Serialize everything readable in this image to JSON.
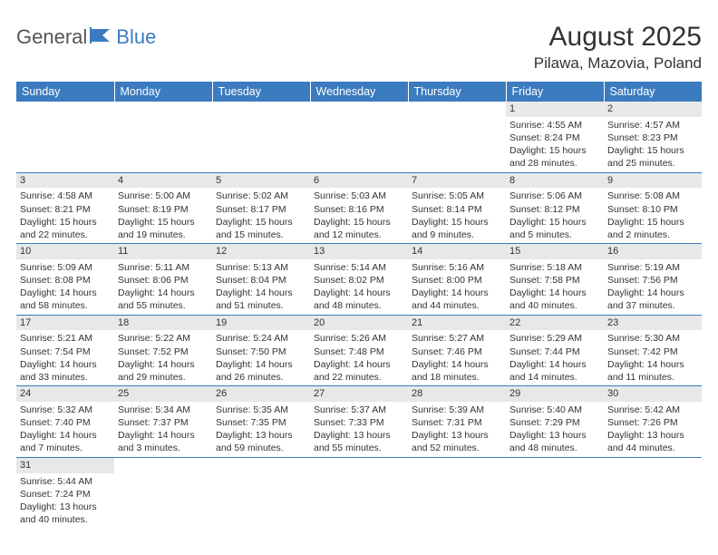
{
  "logo": {
    "text1": "General",
    "text2": "Blue"
  },
  "title": "August 2025",
  "location": "Pilawa, Mazovia, Poland",
  "colors": {
    "header_bg": "#3b7bbf",
    "header_text": "#ffffff",
    "daynum_bg": "#e8e8e8",
    "cell_border": "#3b7bbf",
    "text": "#333333",
    "background": "#ffffff",
    "logo_gray": "#555555",
    "logo_blue": "#3b7bbf"
  },
  "typography": {
    "title_fontsize": 30,
    "location_fontsize": 17,
    "header_cell_fontsize": 12.5,
    "cell_fontsize": 10.5,
    "logo_fontsize": 22
  },
  "days_of_week": [
    "Sunday",
    "Monday",
    "Tuesday",
    "Wednesday",
    "Thursday",
    "Friday",
    "Saturday"
  ],
  "weeks": [
    [
      null,
      null,
      null,
      null,
      null,
      {
        "n": "1",
        "sunrise": "4:55 AM",
        "sunset": "8:24 PM",
        "daylight": "15 hours and 28 minutes."
      },
      {
        "n": "2",
        "sunrise": "4:57 AM",
        "sunset": "8:23 PM",
        "daylight": "15 hours and 25 minutes."
      }
    ],
    [
      {
        "n": "3",
        "sunrise": "4:58 AM",
        "sunset": "8:21 PM",
        "daylight": "15 hours and 22 minutes."
      },
      {
        "n": "4",
        "sunrise": "5:00 AM",
        "sunset": "8:19 PM",
        "daylight": "15 hours and 19 minutes."
      },
      {
        "n": "5",
        "sunrise": "5:02 AM",
        "sunset": "8:17 PM",
        "daylight": "15 hours and 15 minutes."
      },
      {
        "n": "6",
        "sunrise": "5:03 AM",
        "sunset": "8:16 PM",
        "daylight": "15 hours and 12 minutes."
      },
      {
        "n": "7",
        "sunrise": "5:05 AM",
        "sunset": "8:14 PM",
        "daylight": "15 hours and 9 minutes."
      },
      {
        "n": "8",
        "sunrise": "5:06 AM",
        "sunset": "8:12 PM",
        "daylight": "15 hours and 5 minutes."
      },
      {
        "n": "9",
        "sunrise": "5:08 AM",
        "sunset": "8:10 PM",
        "daylight": "15 hours and 2 minutes."
      }
    ],
    [
      {
        "n": "10",
        "sunrise": "5:09 AM",
        "sunset": "8:08 PM",
        "daylight": "14 hours and 58 minutes."
      },
      {
        "n": "11",
        "sunrise": "5:11 AM",
        "sunset": "8:06 PM",
        "daylight": "14 hours and 55 minutes."
      },
      {
        "n": "12",
        "sunrise": "5:13 AM",
        "sunset": "8:04 PM",
        "daylight": "14 hours and 51 minutes."
      },
      {
        "n": "13",
        "sunrise": "5:14 AM",
        "sunset": "8:02 PM",
        "daylight": "14 hours and 48 minutes."
      },
      {
        "n": "14",
        "sunrise": "5:16 AM",
        "sunset": "8:00 PM",
        "daylight": "14 hours and 44 minutes."
      },
      {
        "n": "15",
        "sunrise": "5:18 AM",
        "sunset": "7:58 PM",
        "daylight": "14 hours and 40 minutes."
      },
      {
        "n": "16",
        "sunrise": "5:19 AM",
        "sunset": "7:56 PM",
        "daylight": "14 hours and 37 minutes."
      }
    ],
    [
      {
        "n": "17",
        "sunrise": "5:21 AM",
        "sunset": "7:54 PM",
        "daylight": "14 hours and 33 minutes."
      },
      {
        "n": "18",
        "sunrise": "5:22 AM",
        "sunset": "7:52 PM",
        "daylight": "14 hours and 29 minutes."
      },
      {
        "n": "19",
        "sunrise": "5:24 AM",
        "sunset": "7:50 PM",
        "daylight": "14 hours and 26 minutes."
      },
      {
        "n": "20",
        "sunrise": "5:26 AM",
        "sunset": "7:48 PM",
        "daylight": "14 hours and 22 minutes."
      },
      {
        "n": "21",
        "sunrise": "5:27 AM",
        "sunset": "7:46 PM",
        "daylight": "14 hours and 18 minutes."
      },
      {
        "n": "22",
        "sunrise": "5:29 AM",
        "sunset": "7:44 PM",
        "daylight": "14 hours and 14 minutes."
      },
      {
        "n": "23",
        "sunrise": "5:30 AM",
        "sunset": "7:42 PM",
        "daylight": "14 hours and 11 minutes."
      }
    ],
    [
      {
        "n": "24",
        "sunrise": "5:32 AM",
        "sunset": "7:40 PM",
        "daylight": "14 hours and 7 minutes."
      },
      {
        "n": "25",
        "sunrise": "5:34 AM",
        "sunset": "7:37 PM",
        "daylight": "14 hours and 3 minutes."
      },
      {
        "n": "26",
        "sunrise": "5:35 AM",
        "sunset": "7:35 PM",
        "daylight": "13 hours and 59 minutes."
      },
      {
        "n": "27",
        "sunrise": "5:37 AM",
        "sunset": "7:33 PM",
        "daylight": "13 hours and 55 minutes."
      },
      {
        "n": "28",
        "sunrise": "5:39 AM",
        "sunset": "7:31 PM",
        "daylight": "13 hours and 52 minutes."
      },
      {
        "n": "29",
        "sunrise": "5:40 AM",
        "sunset": "7:29 PM",
        "daylight": "13 hours and 48 minutes."
      },
      {
        "n": "30",
        "sunrise": "5:42 AM",
        "sunset": "7:26 PM",
        "daylight": "13 hours and 44 minutes."
      }
    ],
    [
      {
        "n": "31",
        "sunrise": "5:44 AM",
        "sunset": "7:24 PM",
        "daylight": "13 hours and 40 minutes."
      },
      null,
      null,
      null,
      null,
      null,
      null
    ]
  ],
  "labels": {
    "sunrise_prefix": "Sunrise: ",
    "sunset_prefix": "Sunset: ",
    "daylight_prefix": "Daylight: "
  }
}
